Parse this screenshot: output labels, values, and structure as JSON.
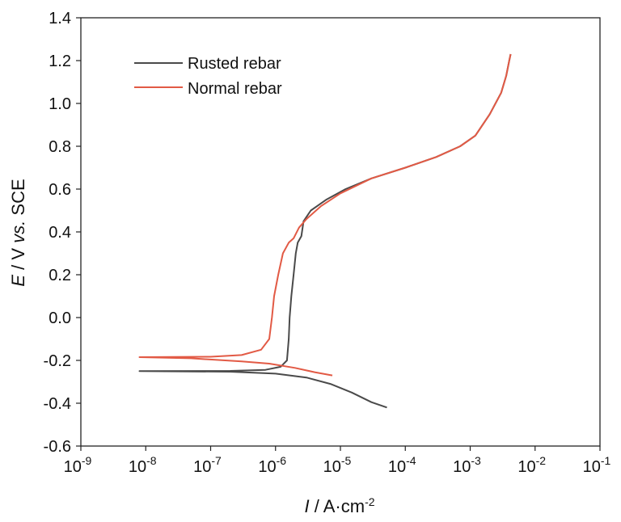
{
  "chart_data": {
    "type": "line",
    "xscale": "log",
    "xlim": [
      1e-09,
      0.1
    ],
    "ylim": [
      -0.6,
      1.4
    ],
    "xlabel": {
      "italic": "I",
      "rest": " / A·cm",
      "sup": "-2"
    },
    "ylabel": {
      "italic_start": "E",
      "mid": " / V ",
      "italic_mid": "vs.",
      "end": " SCE"
    },
    "x_ticks": [
      {
        "value": 1e-09,
        "base": "10",
        "exp": "-9"
      },
      {
        "value": 1e-08,
        "base": "10",
        "exp": "-8"
      },
      {
        "value": 1e-07,
        "base": "10",
        "exp": "-7"
      },
      {
        "value": 1e-06,
        "base": "10",
        "exp": "-6"
      },
      {
        "value": 1e-05,
        "base": "10",
        "exp": "-5"
      },
      {
        "value": 0.0001,
        "base": "10",
        "exp": "-4"
      },
      {
        "value": 0.001,
        "base": "10",
        "exp": "-3"
      },
      {
        "value": 0.01,
        "base": "10",
        "exp": "-2"
      },
      {
        "value": 0.1,
        "base": "10",
        "exp": "-1"
      }
    ],
    "y_ticks": [
      {
        "value": -0.6,
        "label": "-0.6"
      },
      {
        "value": -0.4,
        "label": "-0.4"
      },
      {
        "value": -0.2,
        "label": "-0.2"
      },
      {
        "value": 0.0,
        "label": "0.0"
      },
      {
        "value": 0.2,
        "label": "0.2"
      },
      {
        "value": 0.4,
        "label": "0.4"
      },
      {
        "value": 0.6,
        "label": "0.6"
      },
      {
        "value": 0.8,
        "label": "0.8"
      },
      {
        "value": 1.0,
        "label": "1.0"
      },
      {
        "value": 1.2,
        "label": "1.2"
      },
      {
        "value": 1.4,
        "label": "1.4"
      }
    ],
    "grid": false,
    "legend_position": "top-left",
    "series": [
      {
        "name": "Rusted rebar",
        "color": "#4a4a4a",
        "points": [
          [
            5.2e-05,
            -0.42
          ],
          [
            3e-05,
            -0.395
          ],
          [
            1.5e-05,
            -0.35
          ],
          [
            7e-06,
            -0.31
          ],
          [
            3e-06,
            -0.28
          ],
          [
            1e-06,
            -0.262
          ],
          [
            2e-07,
            -0.253
          ],
          [
            8e-09,
            -0.25
          ],
          [
            2e-07,
            -0.249
          ],
          [
            7e-07,
            -0.244
          ],
          [
            1.2e-06,
            -0.23
          ],
          [
            1.5e-06,
            -0.2
          ],
          [
            1.6e-06,
            -0.1
          ],
          [
            1.65e-06,
            0.0
          ],
          [
            1.75e-06,
            0.1
          ],
          [
            1.9e-06,
            0.2
          ],
          [
            2.05e-06,
            0.3
          ],
          [
            2.2e-06,
            0.35
          ],
          [
            2.5e-06,
            0.38
          ],
          [
            2.7e-06,
            0.45
          ],
          [
            3.5e-06,
            0.5
          ],
          [
            6e-06,
            0.55
          ],
          [
            1.2e-05,
            0.6
          ],
          [
            3e-05,
            0.65
          ],
          [
            0.0001,
            0.7
          ],
          [
            0.0003,
            0.75
          ],
          [
            0.0007,
            0.8
          ],
          [
            0.0012,
            0.85
          ],
          [
            0.002,
            0.95
          ],
          [
            0.003,
            1.05
          ],
          [
            0.0036,
            1.13
          ],
          [
            0.004,
            1.2
          ],
          [
            0.0042,
            1.23
          ]
        ]
      },
      {
        "name": "Normal rebar",
        "color": "#e25a45",
        "points": [
          [
            7.5e-06,
            -0.27
          ],
          [
            4e-06,
            -0.255
          ],
          [
            2e-06,
            -0.235
          ],
          [
            8e-07,
            -0.215
          ],
          [
            3e-07,
            -0.205
          ],
          [
            5e-08,
            -0.19
          ],
          [
            8e-09,
            -0.185
          ],
          [
            1e-07,
            -0.183
          ],
          [
            3e-07,
            -0.175
          ],
          [
            6e-07,
            -0.15
          ],
          [
            8e-07,
            -0.1
          ],
          [
            8.8e-07,
            0.0
          ],
          [
            9.5e-07,
            0.1
          ],
          [
            1.1e-06,
            0.2
          ],
          [
            1.3e-06,
            0.3
          ],
          [
            1.6e-06,
            0.35
          ],
          [
            1.9e-06,
            0.37
          ],
          [
            2.3e-06,
            0.42
          ],
          [
            3e-06,
            0.46
          ],
          [
            5e-06,
            0.52
          ],
          [
            1e-05,
            0.58
          ],
          [
            3e-05,
            0.65
          ],
          [
            0.0001,
            0.7
          ],
          [
            0.0003,
            0.75
          ],
          [
            0.0007,
            0.8
          ],
          [
            0.0012,
            0.85
          ],
          [
            0.002,
            0.95
          ],
          [
            0.003,
            1.05
          ],
          [
            0.0036,
            1.13
          ],
          [
            0.004,
            1.2
          ],
          [
            0.0042,
            1.23
          ]
        ]
      }
    ]
  }
}
